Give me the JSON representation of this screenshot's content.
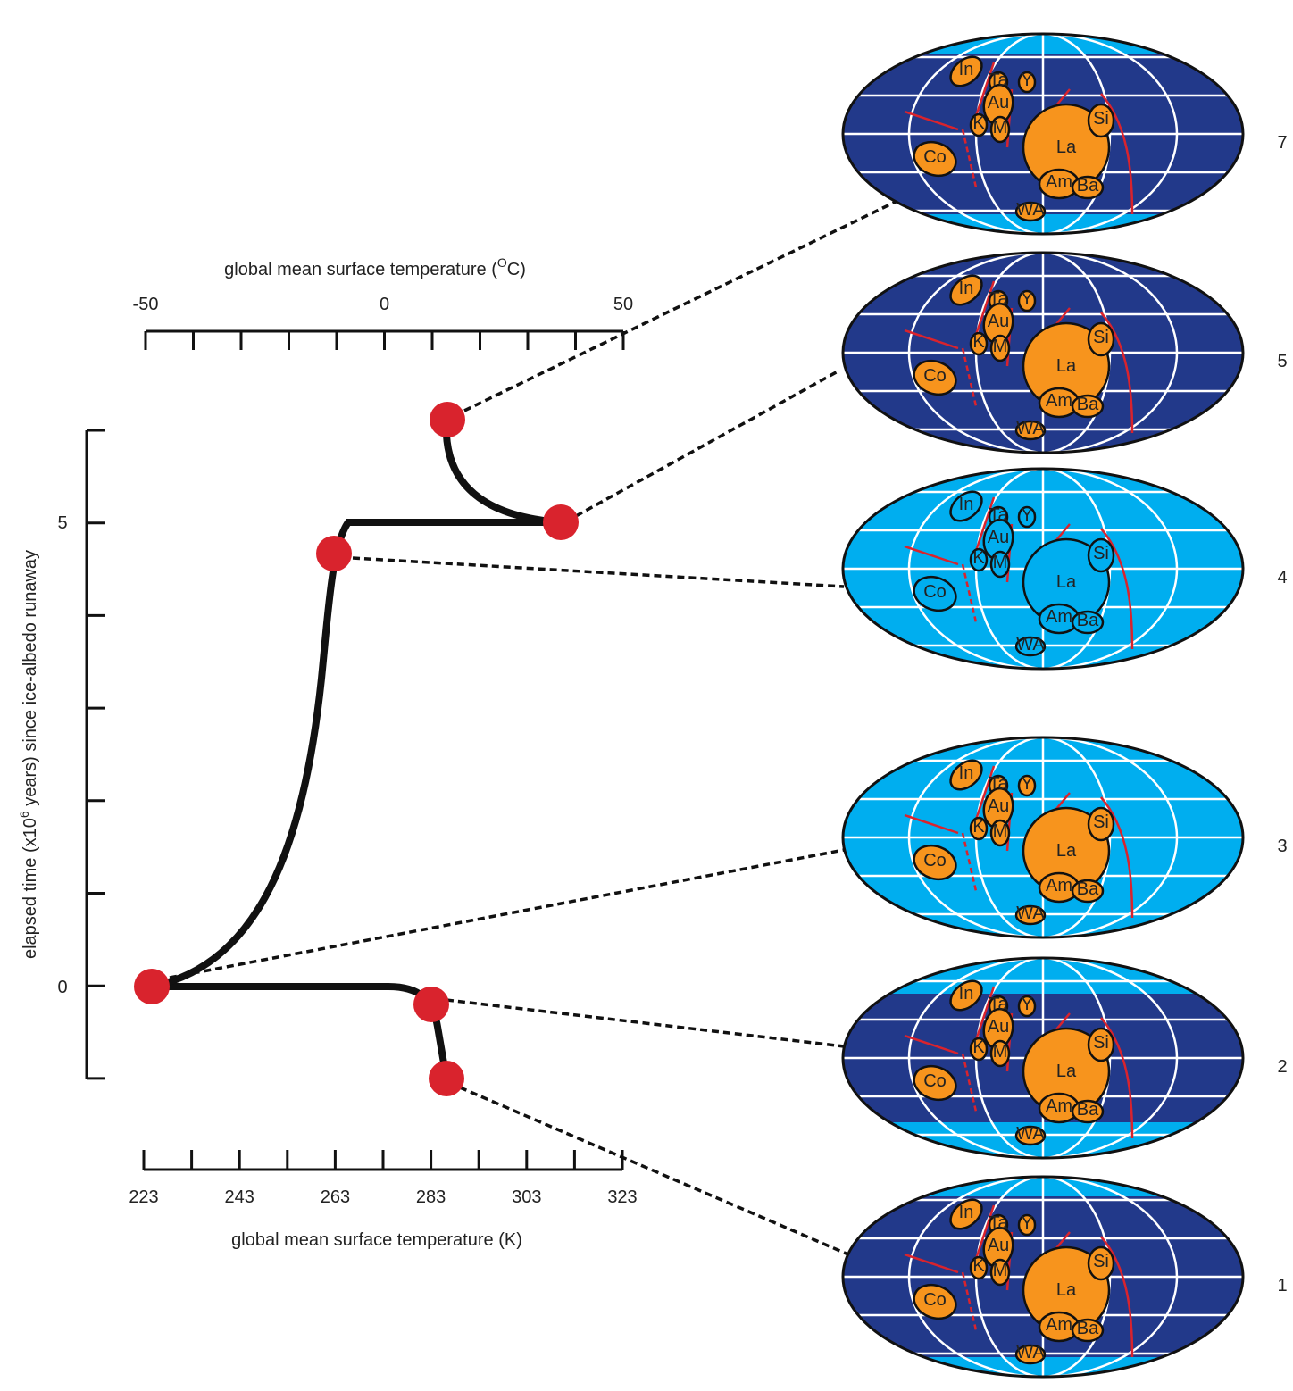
{
  "time_axis": {
    "label_parts": [
      "elapsed time (x10",
      "6",
      " years) since ice-albedo runaway"
    ],
    "ticks": [
      5,
      0
    ]
  },
  "celsius_axis": {
    "label_parts": [
      "global mean surface temperature (",
      "O",
      "C)"
    ],
    "ticks": [
      -50,
      0,
      50
    ]
  },
  "kelvin_axis": {
    "label": "global mean surface temperature (K)",
    "ticks": [
      223,
      243,
      263,
      283,
      303,
      323
    ]
  },
  "continents": [
    "In",
    "Ta",
    "Y",
    "Au",
    "K",
    "M",
    "Co",
    "La",
    "Si",
    "Am",
    "Ba",
    "WA"
  ],
  "maps": [
    {
      "label": "7",
      "ocean": "#22398a",
      "land": "#f7941d",
      "ice": "#00aeef",
      "sea_ice": "polar"
    },
    {
      "label": "5",
      "ocean": "#22398a",
      "land": "#f7941d",
      "ice": "#00aeef",
      "sea_ice": "none"
    },
    {
      "label": "4",
      "ocean": "#00aeef",
      "land": "#00aeef",
      "ice": "#00aeef",
      "sea_ice": "global"
    },
    {
      "label": "3",
      "ocean": "#00aeef",
      "land": "#f7941d",
      "ice": "#00aeef",
      "sea_ice": "global"
    },
    {
      "label": "2",
      "ocean": "#22398a",
      "land": "#f7941d",
      "ice": "#00aeef",
      "sea_ice": "extended"
    },
    {
      "label": "1",
      "ocean": "#22398a",
      "land": "#f7941d",
      "ice": "#00aeef",
      "sea_ice": "polar"
    }
  ]
}
